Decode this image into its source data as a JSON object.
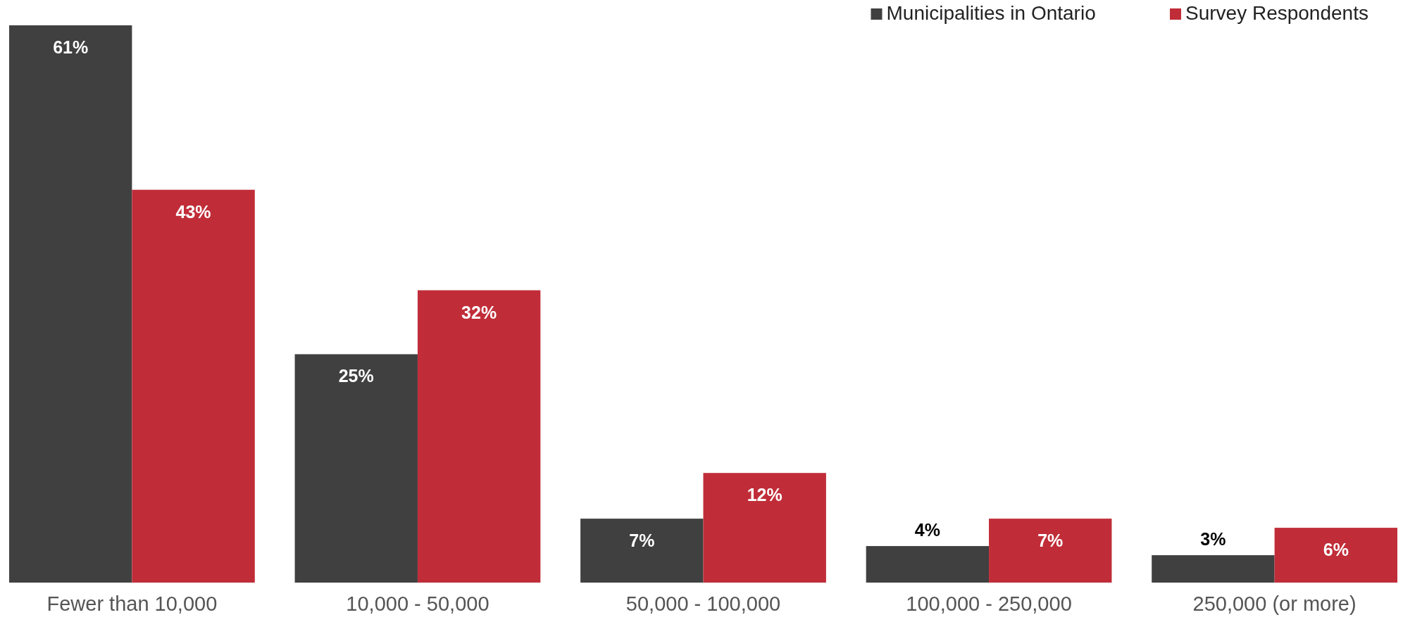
{
  "chart_data": {
    "type": "bar",
    "categories": [
      "Fewer than 10,000",
      "10,000 - 50,000",
      "50,000 - 100,000",
      "100,000 - 250,000",
      "250,000 (or more)"
    ],
    "series": [
      {
        "name": "Municipalities in Ontario",
        "color": "#404040",
        "values": [
          61,
          25,
          7,
          4,
          3
        ],
        "value_labels": [
          "61%",
          "25%",
          "7%",
          "4%",
          "3%"
        ]
      },
      {
        "name": "Survey Respondents",
        "color": "#c02d38",
        "values": [
          43,
          32,
          12,
          7,
          6
        ],
        "value_labels": [
          "43%",
          "32%",
          "12%",
          "7%",
          "6%"
        ]
      }
    ],
    "legend": "top right"
  }
}
